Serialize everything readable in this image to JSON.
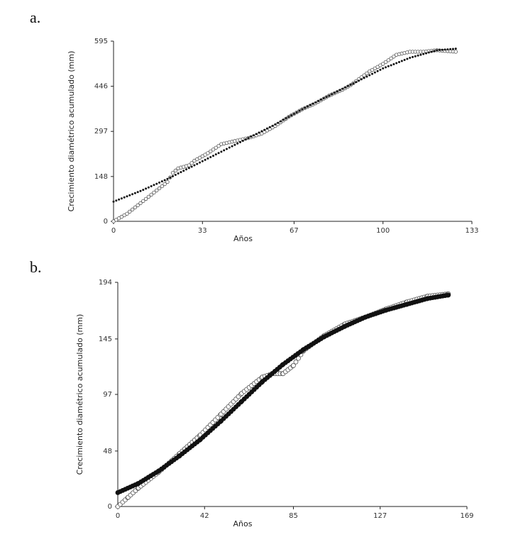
{
  "chart_data": [
    {
      "type": "scatter",
      "panel_label": "a.",
      "xlabel": "Años",
      "ylabel": "Crecimiento diamétrico acumulado (mm)",
      "xlim": [
        0,
        133
      ],
      "ylim": [
        0,
        595
      ],
      "xticks": [
        "0",
        "33",
        "67",
        "100",
        "133"
      ],
      "yticks": [
        "0",
        "148",
        "297",
        "446",
        "595"
      ],
      "grid": false,
      "series": [
        {
          "marker": "open-circle",
          "x": [
            0,
            5,
            10,
            15,
            20,
            22,
            24,
            28,
            30,
            35,
            40,
            45,
            50,
            55,
            58,
            60,
            65,
            70,
            75,
            80,
            85,
            88,
            95,
            100,
            105,
            110,
            115,
            120,
            127
          ],
          "y": [
            0,
            25,
            60,
            95,
            130,
            160,
            175,
            185,
            200,
            225,
            255,
            265,
            275,
            290,
            305,
            315,
            345,
            370,
            390,
            415,
            435,
            450,
            495,
            520,
            550,
            560,
            560,
            565,
            560
          ]
        },
        {
          "marker": "filled-dot",
          "x": [
            0,
            10,
            20,
            30,
            40,
            50,
            60,
            70,
            80,
            90,
            100,
            110,
            120,
            127
          ],
          "y": [
            65,
            100,
            140,
            185,
            230,
            275,
            320,
            370,
            415,
            460,
            505,
            540,
            565,
            570
          ]
        }
      ]
    },
    {
      "type": "scatter",
      "panel_label": "b.",
      "xlabel": "Años",
      "ylabel": "Crecimiento diamétrico acumulado (mm)",
      "xlim": [
        0,
        169
      ],
      "ylim": [
        0,
        194
      ],
      "xticks": [
        "0",
        "42",
        "85",
        "127",
        "169"
      ],
      "yticks": [
        "0",
        "48",
        "97",
        "145",
        "194"
      ],
      "grid": false,
      "series": [
        {
          "marker": "open-circle",
          "x": [
            0,
            5,
            10,
            20,
            30,
            40,
            50,
            60,
            70,
            75,
            80,
            85,
            90,
            100,
            110,
            120,
            130,
            140,
            150,
            160
          ],
          "y": [
            0,
            8,
            16,
            30,
            46,
            62,
            80,
            98,
            112,
            115,
            115,
            122,
            135,
            148,
            158,
            164,
            171,
            177,
            182,
            184
          ]
        },
        {
          "marker": "filled-dot",
          "x": [
            0,
            10,
            20,
            30,
            40,
            50,
            60,
            70,
            80,
            90,
            100,
            110,
            120,
            130,
            140,
            150,
            160
          ],
          "y": [
            12,
            20,
            31,
            44,
            58,
            74,
            91,
            108,
            123,
            136,
            147,
            156,
            164,
            170,
            175,
            180,
            183
          ]
        }
      ]
    }
  ]
}
